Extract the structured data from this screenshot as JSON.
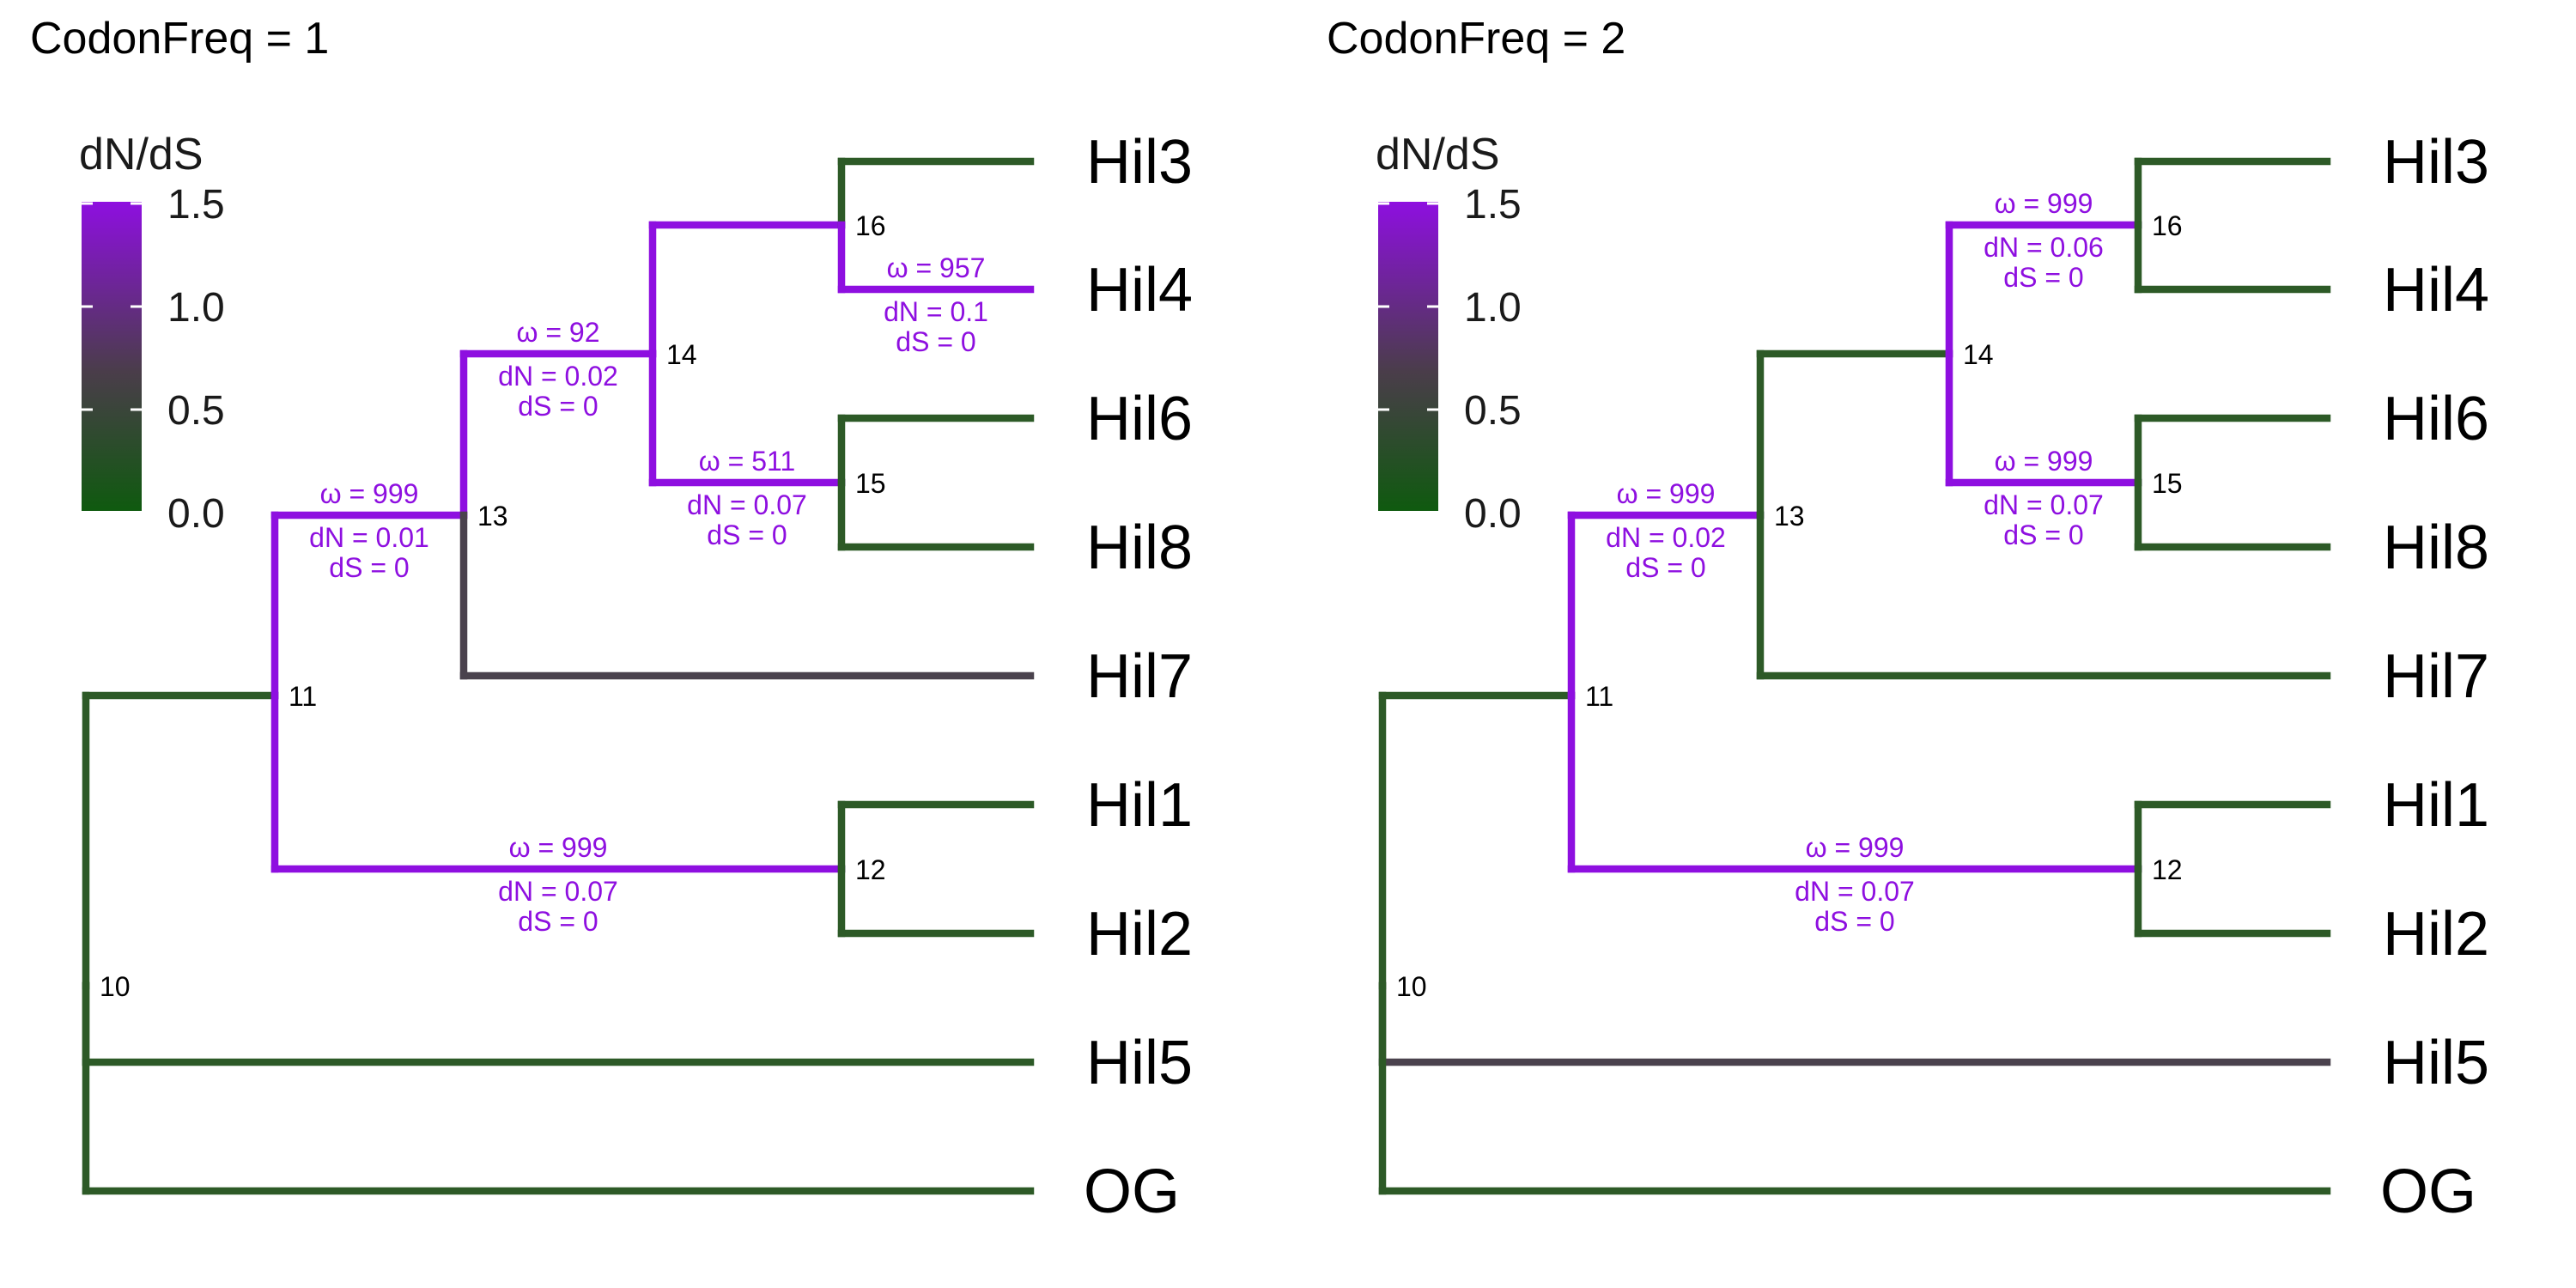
{
  "colors": {
    "low": "#0f5a0f",
    "mid": "#4a3d4a",
    "high": "#8e0fe0",
    "purple": "#8e0fe0",
    "green": "#2d5a27",
    "gray": "#4a424d"
  },
  "legend": {
    "title": "dN/dS",
    "ticks": [
      "1.5",
      "1.0",
      "0.5",
      "0.0"
    ]
  },
  "panels": [
    {
      "title": "CodonFreq = 1",
      "branch_colors": {
        "n16": "purple",
        "n15": "purple",
        "n14": "purple",
        "n13": "purple",
        "n12": "purple",
        "Hil3": "green",
        "Hil4": "purple",
        "Hil6": "green",
        "Hil8": "green",
        "Hil7": "gray",
        "Hil1": "green",
        "Hil2": "green",
        "Hil5": "green",
        "OG": "green",
        "n11": "green"
      },
      "annotations": [
        {
          "branch": "Hil4",
          "omega": "ω = 957",
          "dN": "dN = 0.1",
          "dS": "dS = 0"
        },
        {
          "branch": "n14",
          "omega": "ω = 92",
          "dN": "dN = 0.02",
          "dS": "dS = 0"
        },
        {
          "branch": "n15",
          "omega": "ω = 511",
          "dN": "dN = 0.07",
          "dS": "dS = 0"
        },
        {
          "branch": "n13",
          "omega": "ω = 999",
          "dN": "dN = 0.01",
          "dS": "dS = 0"
        },
        {
          "branch": "n12",
          "omega": "ω = 999",
          "dN": "dN = 0.07",
          "dS": "dS = 0"
        }
      ]
    },
    {
      "title": "CodonFreq = 2",
      "branch_colors": {
        "n16": "purple",
        "n15": "purple",
        "n14": "green",
        "n13": "purple",
        "n12": "purple",
        "Hil3": "green",
        "Hil4": "green",
        "Hil6": "green",
        "Hil8": "green",
        "Hil7": "green",
        "Hil1": "green",
        "Hil2": "green",
        "Hil5": "gray",
        "OG": "green",
        "n11": "green"
      },
      "annotations": [
        {
          "branch": "n16",
          "omega": "ω = 999",
          "dN": "dN = 0.06",
          "dS": "dS = 0"
        },
        {
          "branch": "n15",
          "omega": "ω = 999",
          "dN": "dN = 0.07",
          "dS": "dS = 0"
        },
        {
          "branch": "n13",
          "omega": "ω = 999",
          "dN": "dN = 0.02",
          "dS": "dS = 0"
        },
        {
          "branch": "n12",
          "omega": "ω = 999",
          "dN": "dN = 0.07",
          "dS": "dS = 0"
        }
      ]
    }
  ],
  "tips": [
    "Hil3",
    "Hil4",
    "Hil6",
    "Hil8",
    "Hil7",
    "Hil1",
    "Hil2",
    "Hil5",
    "OG"
  ],
  "nodes": [
    "10",
    "11",
    "12",
    "13",
    "14",
    "15",
    "16"
  ]
}
